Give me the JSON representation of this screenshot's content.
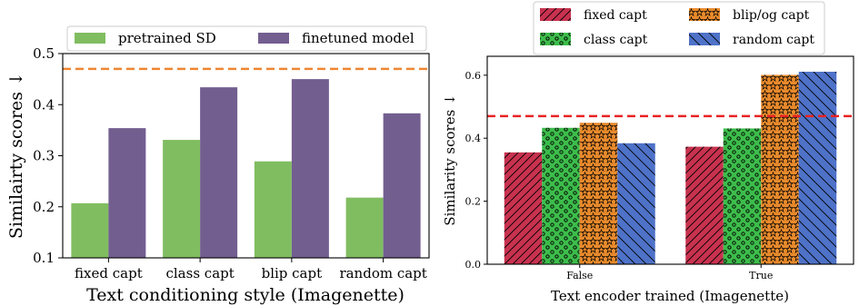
{
  "colors": {
    "pretrained": "#80bd61",
    "finetuned": "#735e90",
    "fixed": "#c8324f",
    "class": "#3dbd4b",
    "blip": "#e88a2c",
    "random": "#4e72c8",
    "ref_left": "#ee8633",
    "ref_right": "#e82323"
  },
  "chart_data": [
    {
      "type": "bar",
      "title": "",
      "xlabel": "Text conditioning style (Imagenette)",
      "ylabel": "Similairty scores ↓",
      "categories": [
        "fixed capt",
        "class capt",
        "blip capt",
        "random capt"
      ],
      "series": [
        {
          "name": "pretrained SD",
          "values": [
            0.207,
            0.331,
            0.289,
            0.218
          ]
        },
        {
          "name": "finetuned model",
          "values": [
            0.354,
            0.434,
            0.45,
            0.383
          ]
        }
      ],
      "reference_line": 0.47,
      "ylim": [
        0.1,
        0.5
      ],
      "yticks": [
        "0.1",
        "0.2",
        "0.3",
        "0.4",
        "0.5"
      ],
      "legend": "top, two columns",
      "grid": false
    },
    {
      "type": "bar",
      "title": "",
      "xlabel": "Text encoder trained (Imagenette)",
      "ylabel": "Similarity scores ↓",
      "categories": [
        "False",
        "True"
      ],
      "series": [
        {
          "name": "fixed capt",
          "pattern": "diagonal",
          "values": [
            0.355,
            0.373
          ]
        },
        {
          "name": "class capt",
          "pattern": "circles",
          "values": [
            0.433,
            0.431
          ]
        },
        {
          "name": "blip/og capt",
          "pattern": "stars",
          "values": [
            0.449,
            0.601
          ]
        },
        {
          "name": "random capt",
          "pattern": "backslash",
          "values": [
            0.384,
            0.611
          ]
        }
      ],
      "reference_line": 0.47,
      "ylim": [
        0.0,
        0.66
      ],
      "yticks": [
        "0.0",
        "0.2",
        "0.4",
        "0.6"
      ],
      "legend": "top, outside, two columns",
      "grid": false
    }
  ]
}
